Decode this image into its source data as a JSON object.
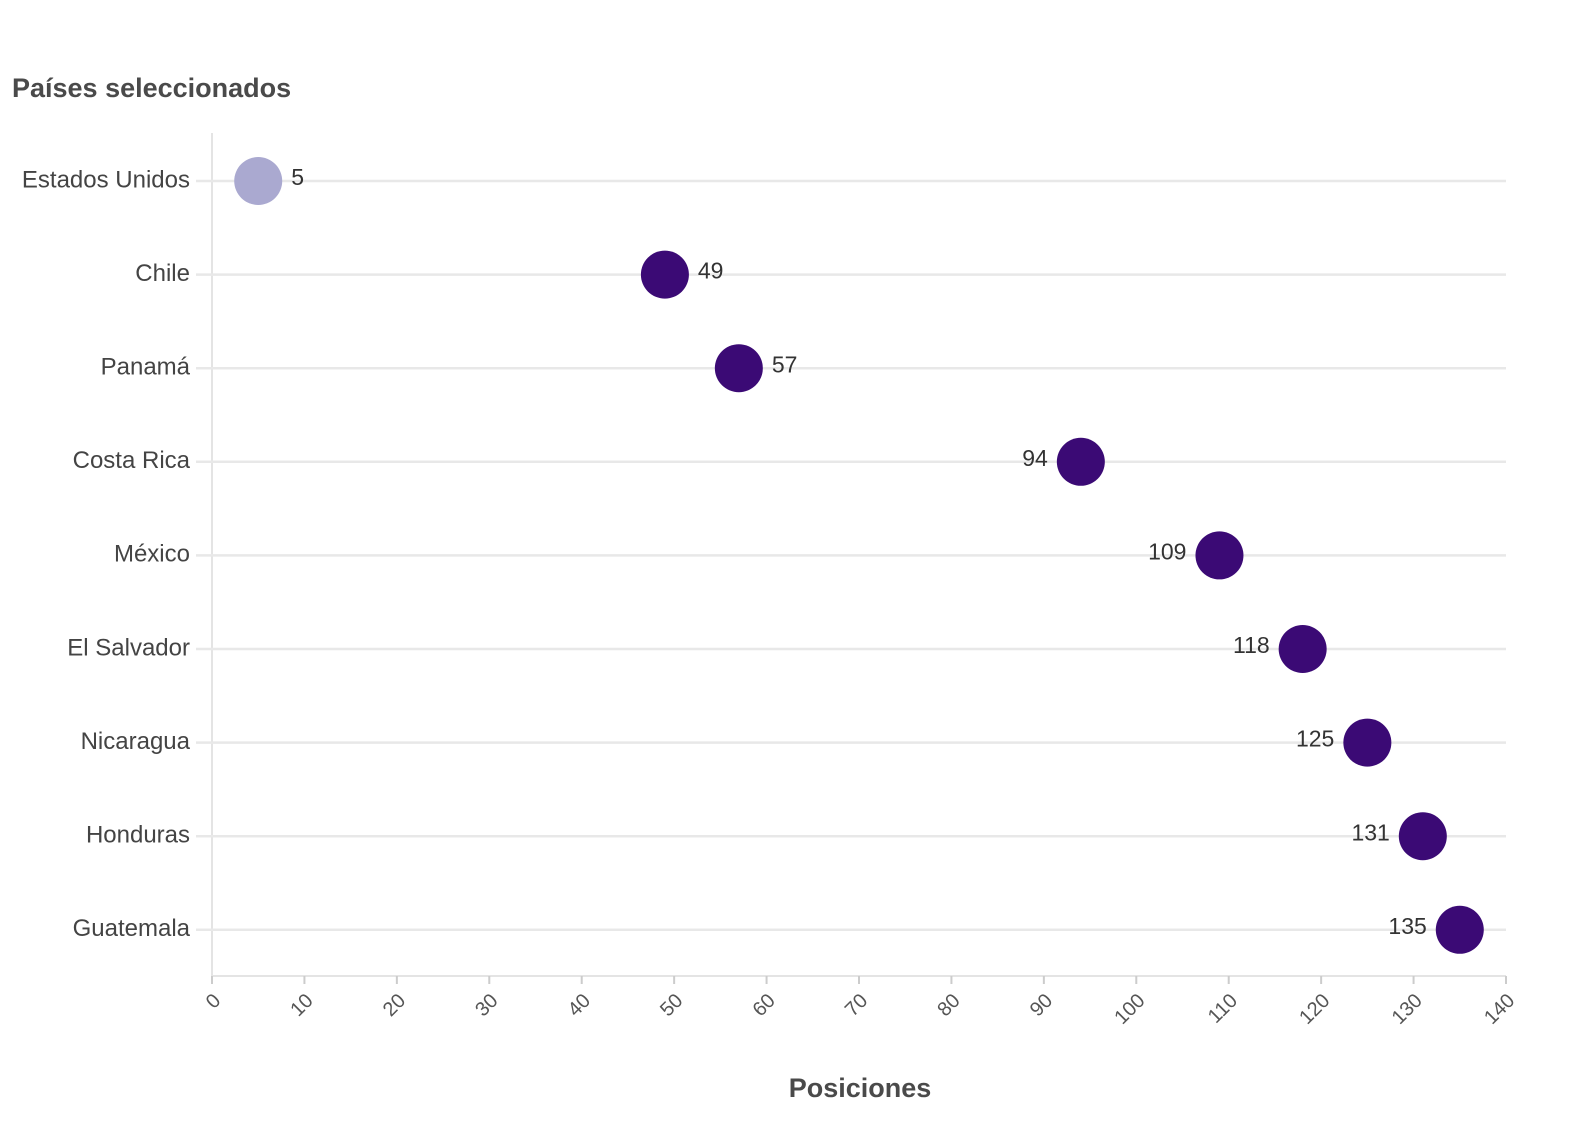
{
  "chart_data": {
    "type": "dot",
    "y_label": "Países seleccionados",
    "x_label": "Posiciones",
    "categories": [
      "Estados Unidos",
      "Chile",
      "Panamá",
      "Costa Rica",
      "México",
      "El Salvador",
      "Nicaragua",
      "Honduras",
      "Guatemala"
    ],
    "values": [
      5,
      49,
      57,
      94,
      109,
      118,
      125,
      131,
      135
    ],
    "colors": [
      "#aaa9d0",
      "#3b0a75",
      "#3b0a75",
      "#3b0a75",
      "#3b0a75",
      "#3b0a75",
      "#3b0a75",
      "#3b0a75",
      "#3b0a75"
    ],
    "xlim": [
      0,
      140
    ],
    "xticks": [
      0,
      10,
      20,
      30,
      40,
      50,
      60,
      70,
      80,
      90,
      100,
      110,
      120,
      130,
      140
    ],
    "grid": true
  }
}
